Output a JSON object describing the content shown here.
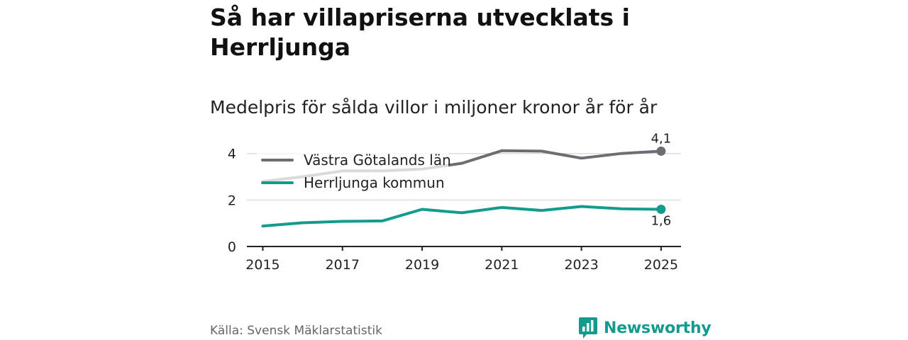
{
  "title": "Så har villapriserna utvecklats i Herrljunga",
  "subtitle": "Medelpris för sålda villor i miljoner kronor år för år",
  "source": "Källa: Svensk Mäklarstatistik",
  "brand": "Newsworthy",
  "colors": {
    "grey_series": "#6e6d72",
    "teal_series": "#139c8e",
    "brand": "#139c8e"
  },
  "chart_data": {
    "type": "line",
    "title": "Så har villapriserna utvecklats i Herrljunga",
    "subtitle": "Medelpris för sålda villor i miljoner kronor år för år",
    "xlabel": "",
    "ylabel": "",
    "x": [
      2015,
      2016,
      2017,
      2018,
      2019,
      2020,
      2021,
      2022,
      2023,
      2024,
      2025
    ],
    "xticks": [
      "2015",
      "2017",
      "2019",
      "2021",
      "2023",
      "2025"
    ],
    "xtick_values": [
      2015,
      2017,
      2019,
      2021,
      2023,
      2025
    ],
    "yticks": [
      "0",
      "2",
      "4"
    ],
    "ytick_values": [
      0,
      2,
      4
    ],
    "xlim": [
      2014.6,
      2025.5
    ],
    "ylim": [
      0,
      4.6
    ],
    "grid": true,
    "legend": "top-left",
    "series": [
      {
        "name": "Västra Götalands län",
        "color": "#6e6d72",
        "values": [
          2.8,
          3.0,
          3.25,
          3.25,
          3.33,
          3.58,
          4.12,
          4.1,
          3.8,
          4.0,
          4.1
        ],
        "end_label": "4,1"
      },
      {
        "name": "Herrljunga kommun",
        "color": "#139c8e",
        "values": [
          0.88,
          1.02,
          1.08,
          1.1,
          1.6,
          1.45,
          1.68,
          1.55,
          1.72,
          1.62,
          1.6
        ],
        "end_label": "1,6"
      }
    ]
  }
}
